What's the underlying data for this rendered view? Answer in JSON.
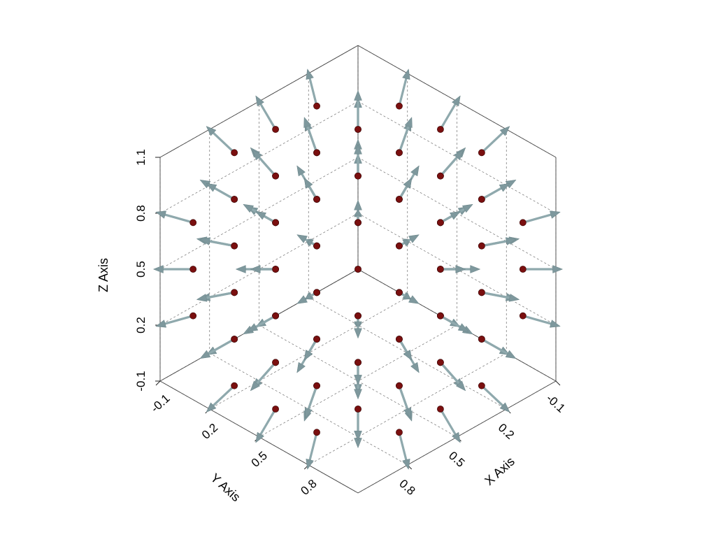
{
  "chart_data": {
    "type": "quiver3d",
    "title": "",
    "xlabel": "X Axis",
    "ylabel": "Y Axis",
    "zlabel": "Z Axis",
    "xlim": [
      -0.1,
      1.1
    ],
    "ylim": [
      -0.1,
      1.1
    ],
    "zlim": [
      -0.1,
      1.1
    ],
    "x_ticks": [
      "-0.1",
      "0.2",
      "0.5",
      "0.8"
    ],
    "y_ticks": [
      "-0.1",
      "0.2",
      "0.5",
      "0.8"
    ],
    "z_ticks": [
      "-0.1",
      "0.2",
      "0.5",
      "0.8",
      "1.1"
    ],
    "grid": true,
    "field_center": [
      0.5,
      0.5,
      0.5
    ],
    "grid_values": [
      0.0,
      0.25,
      0.5,
      0.75,
      1.0
    ],
    "field_description": "outward radial vectors from center, one arrow per grid point"
  },
  "colors": {
    "point": "#7a0f0f",
    "arrow": "#8fa9ad",
    "grid": "#6f6f6f"
  }
}
